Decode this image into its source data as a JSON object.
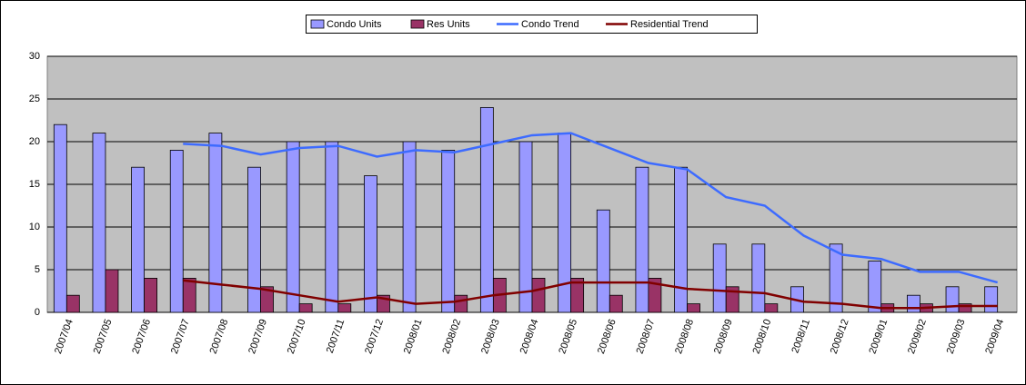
{
  "chart_data": {
    "type": "bar-line",
    "categories": [
      "2007/04",
      "2007/05",
      "2007/06",
      "2007/07",
      "2007/08",
      "2007/09",
      "2007/10",
      "2007/11",
      "2007/12",
      "2008/01",
      "2008/02",
      "2008/03",
      "2008/04",
      "2008/05",
      "2008/06",
      "2008/07",
      "2008/08",
      "2008/09",
      "2008/10",
      "2008/11",
      "2008/12",
      "2009/01",
      "2009/02",
      "2009/03",
      "2009/04"
    ],
    "series": [
      {
        "name": "Condo Units",
        "type": "bar",
        "color": "#9999ff",
        "values": [
          22,
          21,
          17,
          19,
          21,
          17,
          20,
          20,
          16,
          20,
          19,
          24,
          20,
          21,
          12,
          17,
          17,
          8,
          8,
          3,
          8,
          6,
          2,
          3,
          3
        ]
      },
      {
        "name": "Res Units",
        "type": "bar",
        "color": "#993366",
        "values": [
          2,
          5,
          4,
          4,
          0,
          3,
          1,
          1,
          2,
          0,
          2,
          4,
          4,
          4,
          2,
          4,
          1,
          3,
          1,
          0,
          0,
          1,
          1,
          1,
          0
        ]
      },
      {
        "name": "Condo Trend",
        "type": "line",
        "color": "#3d6bff",
        "values": [
          null,
          null,
          null,
          19.75,
          19.5,
          18.5,
          19.25,
          19.5,
          18.25,
          19,
          18.75,
          19.75,
          20.75,
          21,
          19.25,
          17.5,
          16.75,
          13.5,
          12.5,
          9,
          6.75,
          6.25,
          4.75,
          4.75,
          3.5
        ]
      },
      {
        "name": "Residential Trend",
        "type": "line",
        "color": "#800000",
        "values": [
          null,
          null,
          null,
          3.75,
          3.25,
          2.75,
          2,
          1.25,
          1.75,
          1,
          1.25,
          2,
          2.5,
          3.5,
          3.5,
          3.5,
          2.75,
          2.5,
          2.25,
          1.25,
          1,
          0.5,
          0.5,
          0.75,
          0.75
        ]
      }
    ],
    "ylim": [
      0,
      30
    ],
    "yticks": [
      0,
      5,
      10,
      15,
      20,
      25,
      30
    ],
    "grid": true,
    "legend": "top"
  }
}
